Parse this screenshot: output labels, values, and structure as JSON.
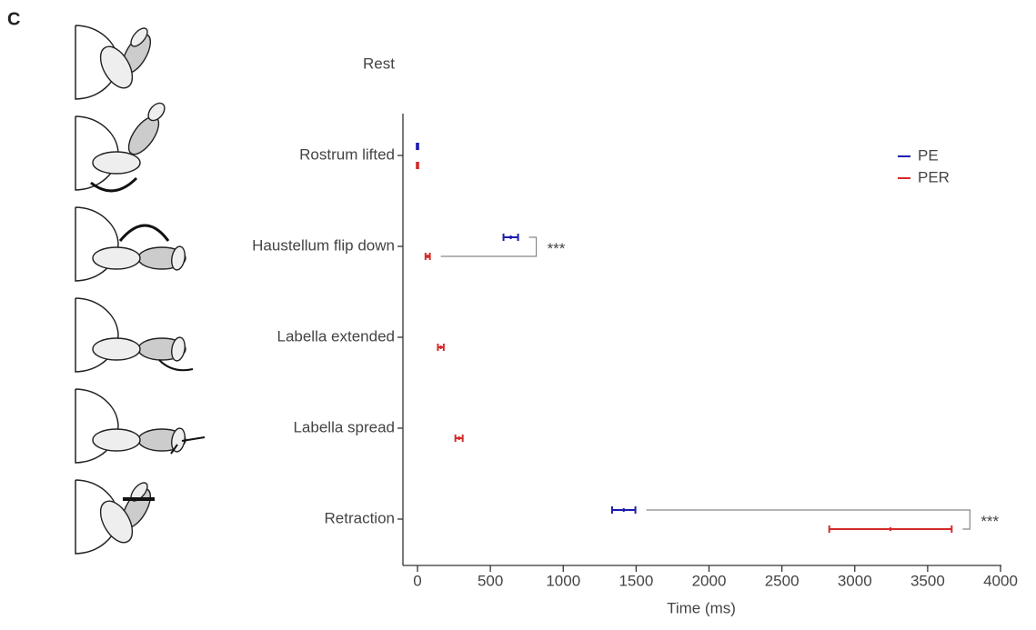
{
  "chart_data": {
    "type": "errorbar",
    "panel_label": "C",
    "categories": [
      "Rest",
      "Rostrum lifted",
      "Haustellum flip down",
      "Labella extended",
      "Labella spread",
      "Retraction"
    ],
    "series": [
      {
        "name": "PE",
        "color": "#1c1cb0",
        "values": [
          null,
          0,
          640,
          null,
          null,
          1415
        ],
        "errors": [
          null,
          5,
          50,
          null,
          null,
          80
        ]
      },
      {
        "name": "PER",
        "color": "#d42a2a",
        "values": [
          null,
          0,
          70,
          160,
          285,
          3245
        ],
        "errors": [
          null,
          5,
          15,
          20,
          25,
          420
        ]
      }
    ],
    "annotations": [
      {
        "text": "***",
        "category": 2
      },
      {
        "text": "***",
        "category": 5
      }
    ],
    "xlabel": "Time (ms)",
    "xlim": [
      -100,
      4000
    ],
    "xticks": [
      0,
      500,
      1000,
      1500,
      2000,
      2500,
      3000,
      3500,
      4000
    ],
    "legend": "upper right"
  }
}
